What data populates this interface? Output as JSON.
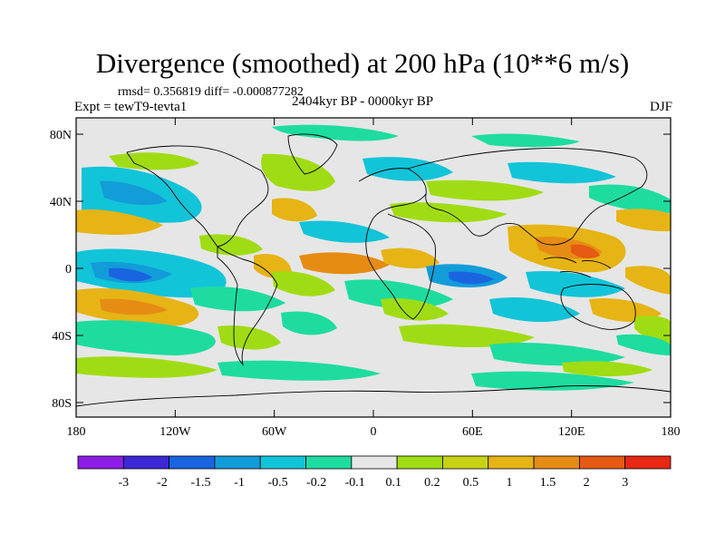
{
  "title": "Divergence (smoothed) at 200 hPa (10**6 m/s)",
  "stats": "rmsd= 0.356819 diff= -0.000877282",
  "experiment": "Expt = tewT9-tevta1",
  "period": "2404kyr BP - 0000kyr BP",
  "season": "DJF",
  "axes": {
    "lat_labels": [
      "80N",
      "40N",
      "0",
      "40S",
      "80S"
    ],
    "lon_labels": [
      "180",
      "120W",
      "60W",
      "0",
      "60E",
      "120E",
      "180"
    ]
  },
  "colorbar": {
    "colors": [
      "#8d1ee6",
      "#3c28d6",
      "#1a64e0",
      "#129cd8",
      "#12c4d8",
      "#1edca0",
      "#e6e6e6",
      "#a0dc14",
      "#c8d214",
      "#e6b414",
      "#e68c14",
      "#e65a14",
      "#e62814"
    ],
    "labels": [
      "-3",
      "-2",
      "-1.5",
      "-1",
      "-0.5",
      "-0.2",
      "-0.1",
      "0.1",
      "0.2",
      "0.5",
      "1",
      "1.5",
      "2",
      "3"
    ]
  },
  "field_colors": {
    "positive_weak": "#a0dc14",
    "positive_mid": "#c8d214",
    "positive_strong": "#e6b414",
    "positive_very_strong": "#e68c14",
    "positive_max": "#e65a14",
    "negative_weak": "#1edca0",
    "negative_mid": "#12c4d8",
    "negative_strong": "#129cd8",
    "negative_very_strong": "#1a64e0",
    "neutral": "#e6e6e6"
  }
}
